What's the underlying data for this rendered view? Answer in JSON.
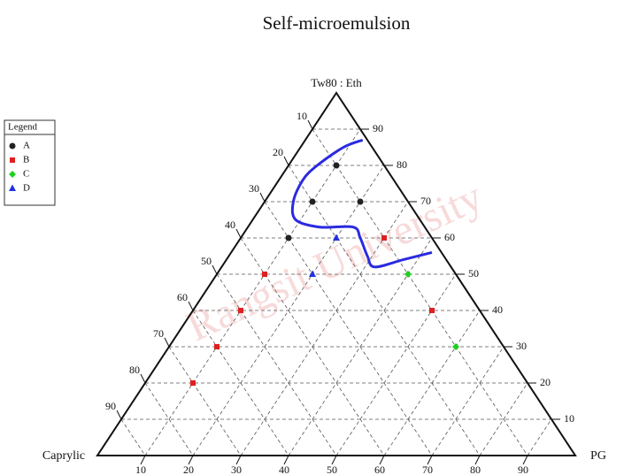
{
  "chart_data": {
    "type": "ternary",
    "title": "Self-microemulsion",
    "watermark": "Rangsit University",
    "top_label": "Tw80 : Eth",
    "left_label": "Caprylic",
    "right_label": "PG",
    "tw80_ticks": [
      10,
      20,
      30,
      40,
      50,
      60,
      70,
      80,
      90
    ],
    "caprylic_ticks": [
      10,
      20,
      30,
      40,
      50,
      60,
      70,
      80,
      90
    ],
    "pg_ticks": [
      10,
      20,
      30,
      40,
      50,
      60,
      70,
      80,
      90
    ],
    "grid": true,
    "legend_title": "Legend",
    "legend_position": "left",
    "series": [
      {
        "name": "A",
        "color": "#222222",
        "marker": "circle",
        "tw80": [
          80,
          70,
          70,
          60
        ],
        "pg": [
          10,
          10,
          20,
          10
        ],
        "caprylic": [
          10,
          20,
          10,
          30
        ]
      },
      {
        "name": "B",
        "color": "#e02020",
        "marker": "square",
        "tw80": [
          60,
          50,
          40,
          30,
          20,
          40
        ],
        "pg": [
          30,
          10,
          10,
          10,
          10,
          50
        ],
        "caprylic": [
          10,
          40,
          50,
          60,
          70,
          10
        ]
      },
      {
        "name": "C",
        "color": "#20d020",
        "marker": "diamond",
        "tw80": [
          50,
          30
        ],
        "pg": [
          40,
          60
        ],
        "caprylic": [
          10,
          10
        ]
      },
      {
        "name": "D",
        "color": "#2030e0",
        "marker": "triangle",
        "tw80": [
          60,
          50
        ],
        "pg": [
          20,
          20
        ],
        "caprylic": [
          20,
          30
        ]
      }
    ],
    "boundary": {
      "color": "#2a2ae0",
      "tw80": [
        87,
        85,
        80,
        76,
        70,
        65,
        63,
        63,
        60,
        55,
        52,
        54,
        56
      ],
      "pg": [
        12,
        9,
        6,
        5,
        6,
        9,
        15,
        22,
        25,
        29,
        32,
        37,
        42
      ]
    }
  }
}
